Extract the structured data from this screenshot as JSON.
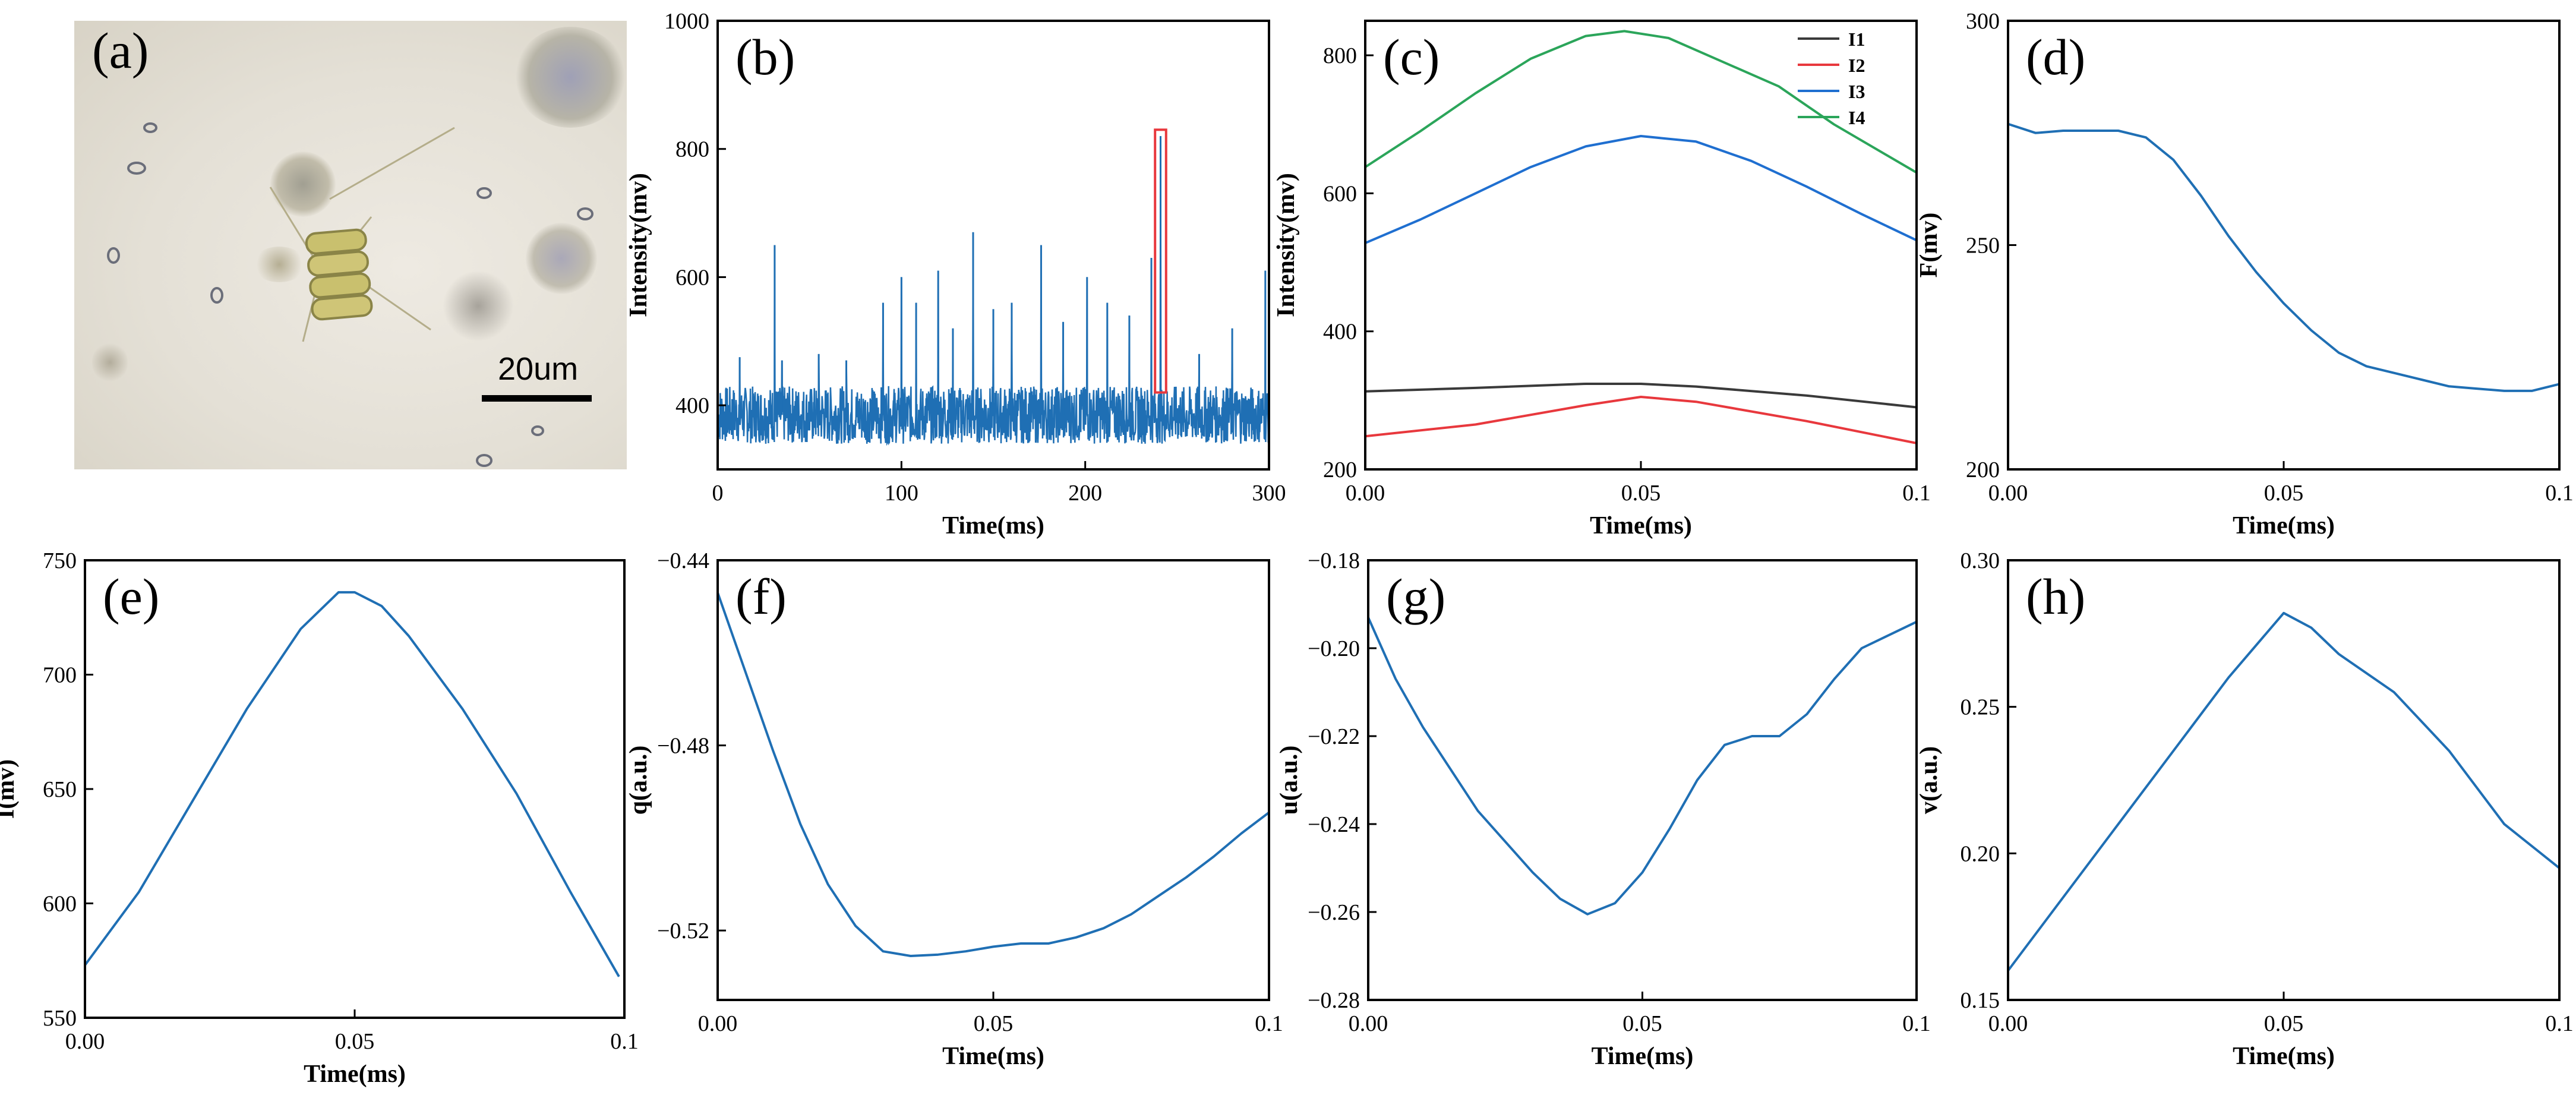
{
  "panel_a": {
    "label": "(a)",
    "scale_bar_text": "20um"
  },
  "chart_data": [
    {
      "id": "b",
      "label": "(b)",
      "type": "line",
      "xlabel": "Time(ms)",
      "ylabel": "Intensity(mv)",
      "xlim": [
        0,
        300
      ],
      "ylim": [
        300,
        1000
      ],
      "xticks": [
        0,
        100,
        200,
        300
      ],
      "yticks": [
        400,
        600,
        800,
        1000
      ],
      "color": "#1f6fb4",
      "baseline": 385,
      "noise_amplitude": 45,
      "spikes": [
        {
          "x": 12,
          "y": 475
        },
        {
          "x": 31,
          "y": 650
        },
        {
          "x": 35,
          "y": 470
        },
        {
          "x": 55,
          "y": 480
        },
        {
          "x": 70,
          "y": 470
        },
        {
          "x": 90,
          "y": 560
        },
        {
          "x": 100,
          "y": 600
        },
        {
          "x": 108,
          "y": 560
        },
        {
          "x": 120,
          "y": 610
        },
        {
          "x": 128,
          "y": 520
        },
        {
          "x": 139,
          "y": 670
        },
        {
          "x": 150,
          "y": 550
        },
        {
          "x": 160,
          "y": 560
        },
        {
          "x": 176,
          "y": 650
        },
        {
          "x": 188,
          "y": 530
        },
        {
          "x": 201,
          "y": 600
        },
        {
          "x": 212,
          "y": 560
        },
        {
          "x": 224,
          "y": 540
        },
        {
          "x": 236,
          "y": 630
        },
        {
          "x": 241,
          "y": 820
        },
        {
          "x": 262,
          "y": 480
        },
        {
          "x": 280,
          "y": 520
        },
        {
          "x": 298,
          "y": 610
        }
      ],
      "highlight": {
        "x0": 238,
        "x1": 244,
        "y0": 420,
        "y1": 830,
        "color": "#e8383d"
      }
    },
    {
      "id": "c",
      "label": "(c)",
      "type": "line",
      "xlabel": "Time(ms)",
      "ylabel": "Intensity(mv)",
      "xlim": [
        0,
        0.1
      ],
      "ylim": [
        200,
        850
      ],
      "xticks": [
        0,
        0.05,
        0.1
      ],
      "xticklabels": [
        "0.00",
        "0.05",
        "0.1"
      ],
      "yticks": [
        200,
        400,
        600,
        800
      ],
      "legend_position": "top-right",
      "series": [
        {
          "name": "I1",
          "color": "#3a3a3a",
          "x": [
            0,
            0.02,
            0.04,
            0.05,
            0.06,
            0.08,
            0.1
          ],
          "y": [
            313,
            318,
            324,
            324,
            320,
            307,
            290
          ]
        },
        {
          "name": "I2",
          "color": "#e8383d",
          "x": [
            0,
            0.02,
            0.04,
            0.05,
            0.06,
            0.08,
            0.1
          ],
          "y": [
            248,
            265,
            293,
            305,
            298,
            270,
            238
          ]
        },
        {
          "name": "I3",
          "color": "#1f6fd0",
          "x": [
            0,
            0.01,
            0.02,
            0.03,
            0.04,
            0.05,
            0.06,
            0.07,
            0.08,
            0.09,
            0.1
          ],
          "y": [
            528,
            562,
            600,
            638,
            668,
            683,
            675,
            647,
            610,
            570,
            532
          ]
        },
        {
          "name": "I4",
          "color": "#2ba55a",
          "x": [
            0,
            0.01,
            0.02,
            0.03,
            0.04,
            0.047,
            0.055,
            0.065,
            0.075,
            0.085,
            0.1
          ],
          "y": [
            638,
            690,
            745,
            795,
            828,
            835,
            825,
            790,
            755,
            700,
            630
          ]
        }
      ]
    },
    {
      "id": "d",
      "label": "(d)",
      "type": "line",
      "xlabel": "Time(ms)",
      "ylabel": "F(mv)",
      "xlim": [
        0,
        0.1
      ],
      "ylim": [
        200,
        300
      ],
      "xticks": [
        0,
        0.05,
        0.1
      ],
      "xticklabels": [
        "0.00",
        "0.05",
        "0.1"
      ],
      "yticks": [
        200,
        250,
        300
      ],
      "color": "#1f6fb4",
      "x": [
        0,
        0.005,
        0.01,
        0.02,
        0.025,
        0.03,
        0.035,
        0.04,
        0.045,
        0.05,
        0.055,
        0.06,
        0.065,
        0.07,
        0.075,
        0.08,
        0.085,
        0.09,
        0.095,
        0.1
      ],
      "y": [
        277,
        275,
        275.5,
        275.5,
        274,
        269,
        261,
        252,
        244,
        237,
        231,
        226,
        223,
        221.5,
        220,
        218.5,
        218,
        217.5,
        217.5,
        219
      ]
    },
    {
      "id": "e",
      "label": "(e)",
      "type": "line",
      "xlabel": "Time(ms)",
      "ylabel": "I(mv)",
      "xlim": [
        0,
        0.1
      ],
      "ylim": [
        550,
        750
      ],
      "xticks": [
        0,
        0.05,
        0.1
      ],
      "xticklabels": [
        "0.00",
        "0.05",
        "0.1"
      ],
      "yticks": [
        550,
        600,
        650,
        700,
        750
      ],
      "color": "#1f6fb4",
      "x": [
        0,
        0.01,
        0.02,
        0.03,
        0.04,
        0.047,
        0.05,
        0.055,
        0.06,
        0.07,
        0.08,
        0.09,
        0.099
      ],
      "y": [
        573,
        605,
        645,
        685,
        720,
        736,
        736,
        730,
        717,
        685,
        648,
        605,
        568
      ]
    },
    {
      "id": "f",
      "label": "(f)",
      "type": "line",
      "xlabel": "Time(ms)",
      "ylabel": "q(a.u.)",
      "xlim": [
        0,
        0.1
      ],
      "ylim": [
        -0.535,
        -0.44
      ],
      "xticks": [
        0,
        0.05,
        0.1
      ],
      "xticklabels": [
        "0.00",
        "0.05",
        "0.1"
      ],
      "yticks": [
        -0.52,
        -0.48,
        -0.44
      ],
      "yticklabels": [
        "−0.52",
        "−0.48",
        "−0.44"
      ],
      "color": "#1f6fb4",
      "x": [
        0,
        0.005,
        0.01,
        0.015,
        0.02,
        0.025,
        0.03,
        0.035,
        0.04,
        0.045,
        0.05,
        0.055,
        0.06,
        0.065,
        0.07,
        0.075,
        0.08,
        0.085,
        0.09,
        0.095,
        0.1
      ],
      "y": [
        -0.447,
        -0.464,
        -0.481,
        -0.497,
        -0.51,
        -0.519,
        -0.5245,
        -0.5255,
        -0.5252,
        -0.5245,
        -0.5235,
        -0.5228,
        -0.5228,
        -0.5215,
        -0.5195,
        -0.5165,
        -0.5125,
        -0.5085,
        -0.504,
        -0.499,
        -0.4945
      ]
    },
    {
      "id": "g",
      "label": "(g)",
      "type": "line",
      "xlabel": "Time(ms)",
      "ylabel": "u(a.u.)",
      "xlim": [
        0,
        0.1
      ],
      "ylim": [
        -0.28,
        -0.18
      ],
      "xticks": [
        0,
        0.05,
        0.1
      ],
      "xticklabels": [
        "0.00",
        "0.05",
        "0.1"
      ],
      "yticks": [
        -0.28,
        -0.26,
        -0.24,
        -0.22,
        -0.2,
        -0.18
      ],
      "yticklabels": [
        "−0.28",
        "−0.26",
        "−0.24",
        "−0.22",
        "−0.20",
        "−0.18"
      ],
      "color": "#1f6fb4",
      "x": [
        0,
        0.005,
        0.01,
        0.02,
        0.03,
        0.035,
        0.04,
        0.045,
        0.05,
        0.055,
        0.06,
        0.065,
        0.07,
        0.075,
        0.08,
        0.085,
        0.09,
        0.095,
        0.1
      ],
      "y": [
        -0.193,
        -0.207,
        -0.218,
        -0.237,
        -0.251,
        -0.257,
        -0.2605,
        -0.258,
        -0.251,
        -0.241,
        -0.23,
        -0.222,
        -0.22,
        -0.22,
        -0.215,
        -0.207,
        -0.2,
        -0.197,
        -0.194
      ]
    },
    {
      "id": "h",
      "label": "(h)",
      "type": "line",
      "xlabel": "Time(ms)",
      "ylabel": "v(a.u.)",
      "xlim": [
        0,
        0.1
      ],
      "ylim": [
        0.15,
        0.3
      ],
      "xticks": [
        0,
        0.05,
        0.1
      ],
      "xticklabels": [
        "0.00",
        "0.05",
        "0.1"
      ],
      "yticks": [
        0.15,
        0.2,
        0.25,
        0.3
      ],
      "yticklabels": [
        "0.15",
        "0.20",
        "0.25",
        "0.30"
      ],
      "color": "#1f6fb4",
      "x": [
        0,
        0.01,
        0.02,
        0.03,
        0.04,
        0.05,
        0.055,
        0.06,
        0.07,
        0.08,
        0.09,
        0.1
      ],
      "y": [
        0.16,
        0.185,
        0.21,
        0.235,
        0.26,
        0.282,
        0.277,
        0.268,
        0.255,
        0.235,
        0.21,
        0.195
      ]
    }
  ]
}
